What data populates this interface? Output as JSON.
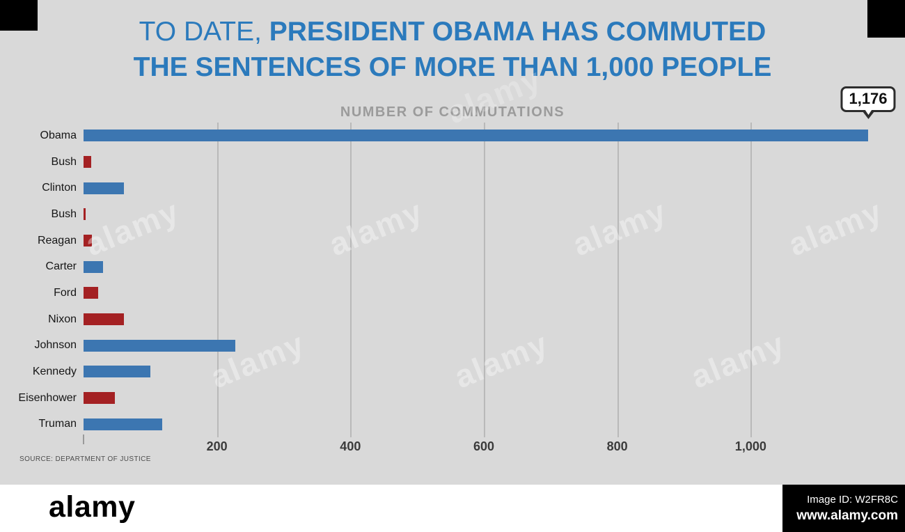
{
  "header": {
    "title_prefix": "TO DATE, ",
    "title_bold_line1": "PRESIDENT OBAMA HAS COMMUTED",
    "title_line2": "THE SENTENCES OF MORE THAN 1,000 PEOPLE",
    "subtitle": "NUMBER OF COMMUTATIONS"
  },
  "source": "SOURCE: DEPARTMENT OF JUSTICE",
  "watermark": {
    "brand": "alamy",
    "image_id": "Image ID: W2FR8C",
    "site": "www.alamy.com"
  },
  "chart_data": {
    "type": "bar",
    "orientation": "horizontal",
    "title": "TO DATE, PRESIDENT OBAMA HAS COMMUTED THE SENTENCES OF MORE THAN 1,000 PEOPLE",
    "subtitle": "NUMBER OF COMMUTATIONS",
    "categories": [
      "Obama",
      "Bush",
      "Clinton",
      "Bush",
      "Reagan",
      "Carter",
      "Ford",
      "Nixon",
      "Johnson",
      "Kennedy",
      "Eisenhower",
      "Truman"
    ],
    "values": [
      1176,
      11,
      61,
      3,
      13,
      29,
      22,
      60,
      227,
      100,
      47,
      118
    ],
    "parties": [
      "democrat",
      "republican",
      "democrat",
      "republican",
      "republican",
      "democrat",
      "republican",
      "republican",
      "democrat",
      "democrat",
      "republican",
      "democrat"
    ],
    "party_colors": {
      "democrat": "#3c76b1",
      "republican": "#a42123"
    },
    "xlim": [
      0,
      1176
    ],
    "x_ticks": [
      200,
      400,
      600,
      800,
      1000
    ],
    "x_tick_labels": [
      "200",
      "400",
      "600",
      "800",
      "1,000"
    ],
    "grid": "vertical-gridlines",
    "legend": "none",
    "annotation": {
      "text": "1,176",
      "target": "Obama"
    },
    "source": "SOURCE: DEPARTMENT OF JUSTICE"
  }
}
